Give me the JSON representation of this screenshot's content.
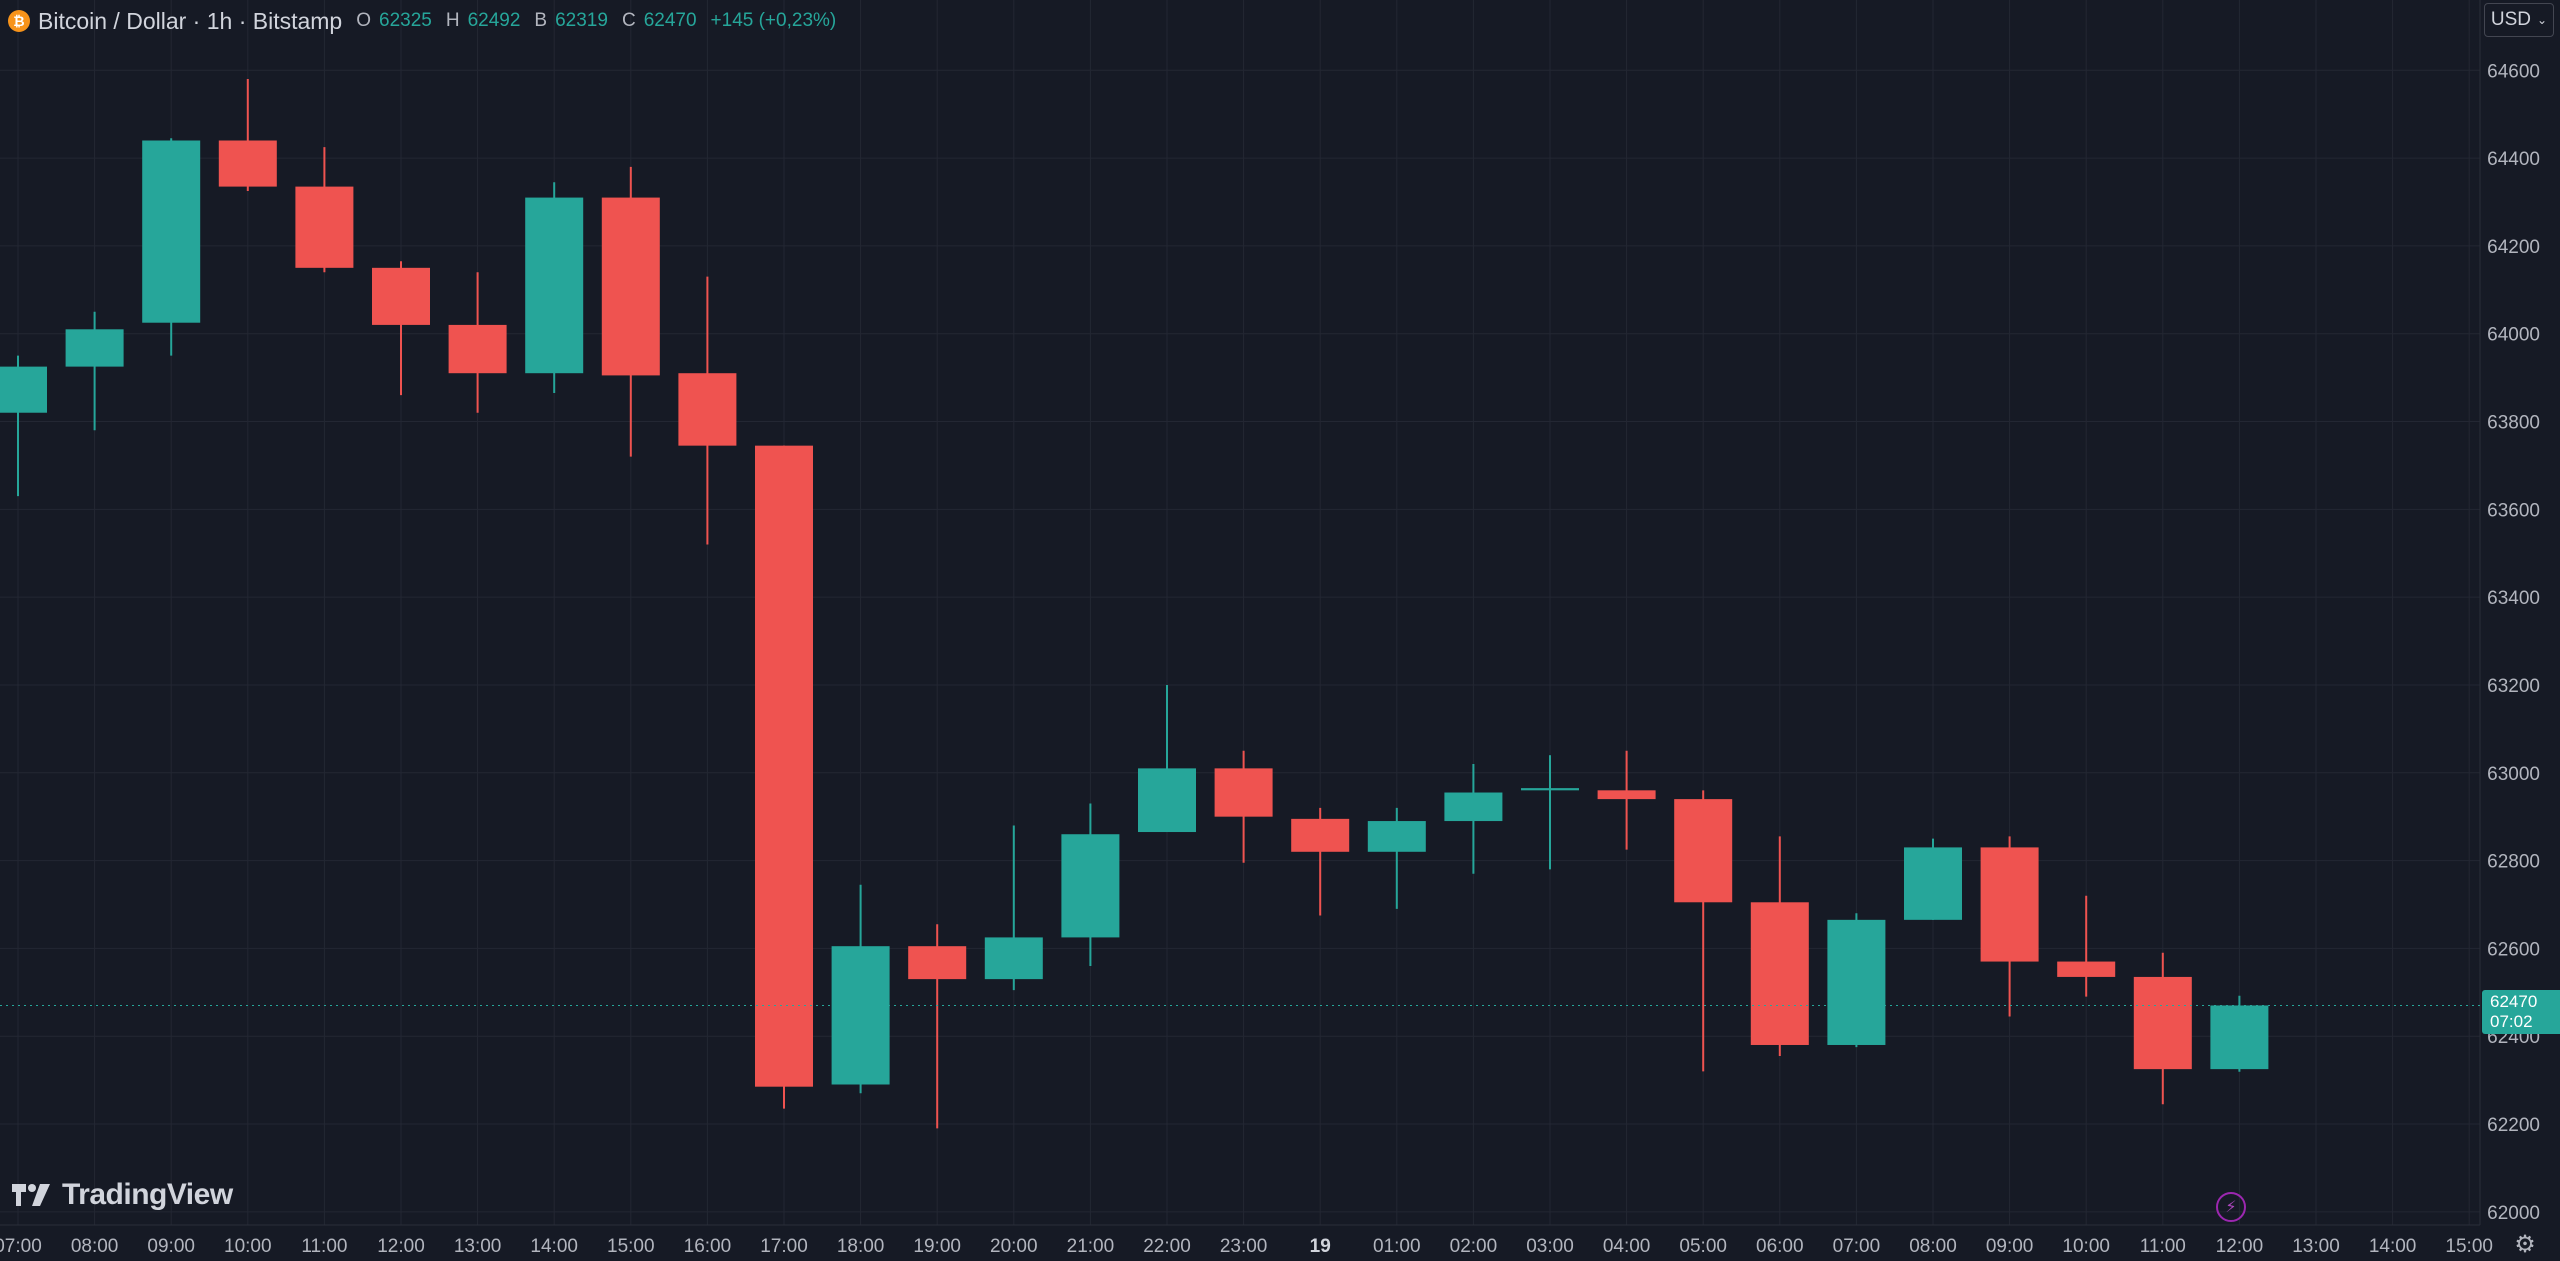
{
  "legend": {
    "symbol_icon": "bitcoin-icon",
    "title": "Bitcoin / Dollar · 1h · Bitstamp",
    "open_label": "O",
    "open": "62325",
    "high_label": "H",
    "high": "62492",
    "low_label": "B",
    "low": "62319",
    "close_label": "C",
    "close": "62470",
    "change": "+145 (+0,23%)"
  },
  "currency": {
    "label": "USD",
    "icon": "chevron-down-icon"
  },
  "price_tag": {
    "price": "62470",
    "countdown": "07:02"
  },
  "logo": {
    "text": "TradingView",
    "icon": "tradingview-logo-icon"
  },
  "colors": {
    "up": "#26a69a",
    "down": "#ef5350",
    "background": "#161a25",
    "grid": "#232733",
    "text": "#b2b5be"
  },
  "chart_data": {
    "type": "candlestick",
    "y_axis": {
      "min": 61970,
      "max": 64760,
      "side": "right",
      "ticks": [
        "64600",
        "64400",
        "64200",
        "64000",
        "63800",
        "63600",
        "63400",
        "63200",
        "63000",
        "62800",
        "62600",
        "62400",
        "62200",
        "62000"
      ],
      "tick_values": [
        64600,
        64400,
        64200,
        64000,
        63800,
        63600,
        63400,
        63200,
        63000,
        62800,
        62600,
        62400,
        62200,
        62000
      ]
    },
    "x_axis": {
      "labels": [
        "07:00",
        "08:00",
        "09:00",
        "10:00",
        "11:00",
        "12:00",
        "13:00",
        "14:00",
        "15:00",
        "16:00",
        "17:00",
        "18:00",
        "19:00",
        "20:00",
        "21:00",
        "22:00",
        "23:00",
        "19",
        "01:00",
        "02:00",
        "03:00",
        "04:00",
        "05:00",
        "06:00",
        "07:00",
        "08:00",
        "09:00",
        "10:00",
        "11:00",
        "12:00",
        "13:00",
        "14:00",
        "15:00"
      ],
      "bold_labels": [
        "19"
      ]
    },
    "candles": [
      {
        "t": "07:00",
        "o": 63820,
        "h": 63950,
        "l": 63630,
        "c": 63925
      },
      {
        "t": "08:00",
        "o": 63925,
        "h": 64050,
        "l": 63780,
        "c": 64010
      },
      {
        "t": "09:00",
        "o": 64025,
        "h": 64445,
        "l": 63950,
        "c": 64440
      },
      {
        "t": "10:00",
        "o": 64440,
        "h": 64580,
        "l": 64325,
        "c": 64335
      },
      {
        "t": "11:00",
        "o": 64335,
        "h": 64425,
        "l": 64140,
        "c": 64150
      },
      {
        "t": "12:00",
        "o": 64150,
        "h": 64165,
        "l": 63860,
        "c": 64020
      },
      {
        "t": "13:00",
        "o": 64020,
        "h": 64140,
        "l": 63820,
        "c": 63910
      },
      {
        "t": "14:00",
        "o": 63910,
        "h": 64345,
        "l": 63865,
        "c": 64310
      },
      {
        "t": "15:00",
        "o": 64310,
        "h": 64380,
        "l": 63720,
        "c": 63905
      },
      {
        "t": "16:00",
        "o": 63910,
        "h": 64130,
        "l": 63520,
        "c": 63745
      },
      {
        "t": "17:00",
        "o": 63745,
        "h": 63745,
        "l": 62235,
        "c": 62285
      },
      {
        "t": "18:00",
        "o": 62290,
        "h": 62745,
        "l": 62270,
        "c": 62605
      },
      {
        "t": "19:00",
        "o": 62605,
        "h": 62655,
        "l": 62190,
        "c": 62530
      },
      {
        "t": "20:00",
        "o": 62530,
        "h": 62880,
        "l": 62505,
        "c": 62625
      },
      {
        "t": "21:00",
        "o": 62625,
        "h": 62930,
        "l": 62560,
        "c": 62860
      },
      {
        "t": "22:00",
        "o": 62865,
        "h": 63200,
        "l": 62865,
        "c": 63010
      },
      {
        "t": "23:00",
        "o": 63010,
        "h": 63050,
        "l": 62795,
        "c": 62900
      },
      {
        "t": "00:00",
        "o": 62895,
        "h": 62920,
        "l": 62675,
        "c": 62820
      },
      {
        "t": "01:00",
        "o": 62820,
        "h": 62920,
        "l": 62690,
        "c": 62890
      },
      {
        "t": "02:00",
        "o": 62890,
        "h": 63020,
        "l": 62770,
        "c": 62955
      },
      {
        "t": "03:00",
        "o": 62960,
        "h": 63040,
        "l": 62780,
        "c": 62965
      },
      {
        "t": "04:00",
        "o": 62960,
        "h": 63050,
        "l": 62825,
        "c": 62940
      },
      {
        "t": "05:00",
        "o": 62940,
        "h": 62960,
        "l": 62320,
        "c": 62705
      },
      {
        "t": "06:00",
        "o": 62705,
        "h": 62855,
        "l": 62355,
        "c": 62380
      },
      {
        "t": "07:00",
        "o": 62380,
        "h": 62680,
        "l": 62375,
        "c": 62665
      },
      {
        "t": "08:00",
        "o": 62665,
        "h": 62850,
        "l": 62665,
        "c": 62830
      },
      {
        "t": "09:00",
        "o": 62830,
        "h": 62855,
        "l": 62445,
        "c": 62570
      },
      {
        "t": "10:00",
        "o": 62570,
        "h": 62720,
        "l": 62490,
        "c": 62535
      },
      {
        "t": "11:00",
        "o": 62535,
        "h": 62590,
        "l": 62245,
        "c": 62325
      },
      {
        "t": "12:00",
        "o": 62325,
        "h": 62492,
        "l": 62319,
        "c": 62470
      }
    ],
    "last_price_line": 62470,
    "grid": true
  }
}
